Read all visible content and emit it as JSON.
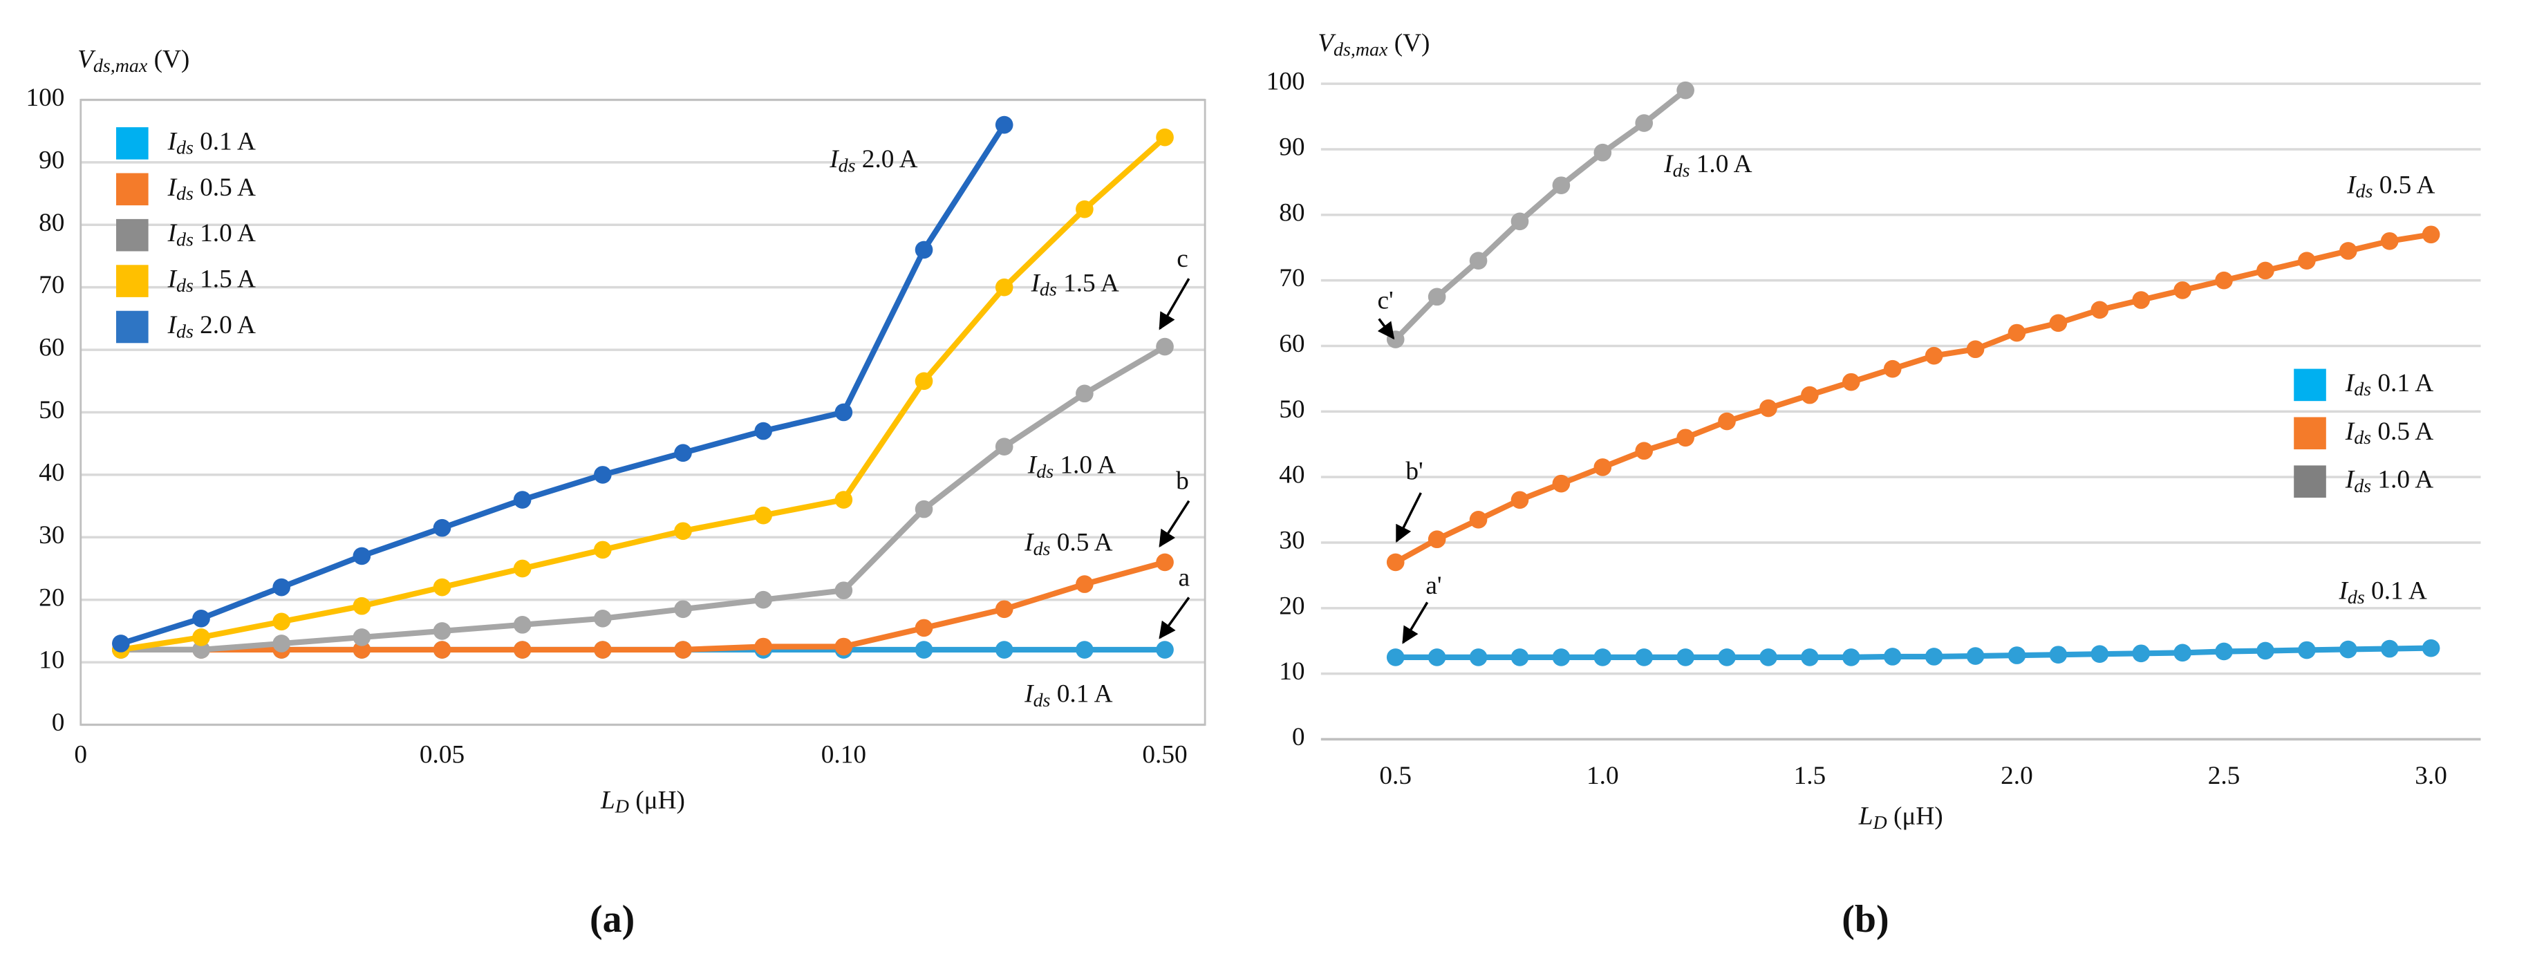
{
  "chart_data": [
    {
      "type": "line",
      "panel_label": "(a)",
      "y_label": "Vds,max (V)",
      "x_label": "LD (μH)",
      "x_origin_label": "0",
      "categories": [
        null,
        null,
        null,
        null,
        "0.05",
        null,
        null,
        null,
        null,
        "0.10",
        null,
        null,
        null,
        "0.50"
      ],
      "ylim": [
        0,
        100
      ],
      "yticks": [
        0,
        10,
        20,
        30,
        40,
        50,
        60,
        70,
        80,
        90,
        100
      ],
      "grid": true,
      "series": [
        {
          "name": "Ids 0.1 A",
          "color": "#00b0f0",
          "line_color": "#2e9fd8",
          "values": [
            12,
            12,
            12,
            12,
            12,
            12,
            12,
            12,
            12,
            12,
            12,
            12,
            12,
            12
          ]
        },
        {
          "name": "Ids 0.5 A",
          "color": "#f47b2a",
          "line_color": "#f47b2a",
          "values": [
            12,
            12,
            12,
            12,
            12,
            12,
            12,
            12,
            12.5,
            12.5,
            15.5,
            18.5,
            22.5,
            26
          ]
        },
        {
          "name": "Ids 1.0 A",
          "color": "#8c8c8c",
          "line_color": "#a6a6a6",
          "values": [
            12,
            12,
            13,
            14,
            15,
            16,
            17,
            18.5,
            20,
            21.5,
            34.5,
            44.5,
            53,
            60.5
          ]
        },
        {
          "name": "Ids 1.5 A",
          "color": "#ffc000",
          "line_color": "#ffc000",
          "values": [
            12,
            14,
            16.5,
            19,
            22,
            25,
            28,
            31,
            33.5,
            36,
            55,
            70,
            82.5,
            94
          ]
        },
        {
          "name": "Ids 2.0 A",
          "color": "#2e75c4",
          "line_color": "#2368bf",
          "values": [
            13,
            17,
            22,
            27,
            31.5,
            36,
            40,
            43.5,
            47,
            50,
            76,
            96,
            null,
            null
          ]
        }
      ],
      "annotations": [
        "Ids 2.0 A",
        "Ids 1.5 A",
        "c",
        "Ids 1.0 A",
        "b",
        "Ids 0.5 A",
        "a",
        "Ids 0.1 A"
      ]
    },
    {
      "type": "line_xy",
      "panel_label": "(b)",
      "y_label": "Vds,max (V)",
      "x_label": "LD (μH)",
      "x": [
        0.5,
        0.6,
        0.7,
        0.8,
        0.9,
        1.0,
        1.1,
        1.2,
        1.3,
        1.4,
        1.5,
        1.6,
        1.7,
        1.8,
        1.9,
        2.0,
        2.1,
        2.2,
        2.3,
        2.4,
        2.5,
        2.6,
        2.7,
        2.8,
        2.9,
        3.0
      ],
      "xlim": [
        0.32,
        3.12
      ],
      "xticks": [
        0.5,
        {
          "value": 1,
          "label": "1.0"
        },
        1.5,
        {
          "value": 2,
          "label": "2.0"
        },
        2.5,
        {
          "value": 3,
          "label": "3.0"
        }
      ],
      "ylim": [
        0,
        100
      ],
      "yticks": [
        0,
        10,
        20,
        30,
        40,
        50,
        60,
        70,
        80,
        90,
        100
      ],
      "grid": true,
      "series": [
        {
          "name": "Ids 0.1 A",
          "color": "#00b0f0",
          "line_color": "#2e9fd8",
          "values": [
            12.5,
            12.5,
            12.5,
            12.5,
            12.5,
            12.5,
            12.5,
            12.5,
            12.5,
            12.5,
            12.5,
            12.5,
            12.6,
            12.6,
            12.7,
            12.8,
            12.9,
            13,
            13.1,
            13.2,
            13.4,
            13.5,
            13.6,
            13.7,
            13.8,
            13.9
          ]
        },
        {
          "name": "Ids 0.5 A",
          "color": "#f47b2a",
          "line_color": "#f47b2a",
          "values": [
            27,
            30.5,
            33.5,
            36.5,
            39,
            41.5,
            44,
            46,
            48.5,
            50.5,
            52.5,
            54.5,
            56.5,
            58.5,
            59.5,
            62,
            63.5,
            65.5,
            67,
            68.5,
            70,
            71.5,
            73,
            74.5,
            76,
            77
          ]
        },
        {
          "name": "Ids 1.0 A",
          "color": "#808080",
          "line_color": "#a6a6a6",
          "values": [
            61,
            67.5,
            73,
            79,
            84.5,
            89.5,
            94,
            99,
            null,
            null,
            null,
            null,
            null,
            null,
            null,
            null,
            null,
            null,
            null,
            null,
            null,
            null,
            null,
            null,
            null,
            null
          ]
        }
      ],
      "annotations": [
        "Ids 1.0 A",
        "Ids 0.5 A",
        "c'",
        "b'",
        "a'",
        "Ids 0.1 A"
      ]
    }
  ]
}
